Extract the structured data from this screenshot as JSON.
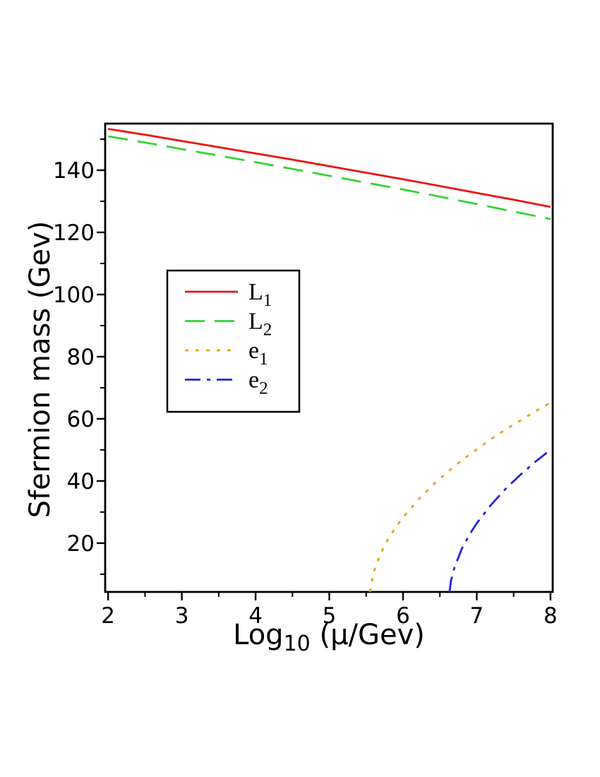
{
  "chart_data": {
    "type": "line",
    "title": "",
    "xlabel": {
      "prefix": "Log",
      "sub": "10",
      "suffix": " (μ/Gev)"
    },
    "ylabel": "Sfermion mass (Gev)",
    "xlim": [
      1.96,
      8.03
    ],
    "ylim": [
      4.3,
      155.0
    ],
    "x_major_ticks": [
      2,
      3,
      4,
      5,
      6,
      7,
      8
    ],
    "x_minor_ticks": [
      2.5,
      3.5,
      4.5,
      5.5,
      6.5,
      7.5
    ],
    "y_major_ticks": [
      20,
      40,
      60,
      80,
      100,
      120,
      140
    ],
    "y_minor_ticks": [
      10,
      30,
      50,
      70,
      90,
      110,
      130,
      150
    ],
    "grid": false,
    "frame_color": "#000000",
    "background": "#ffffff",
    "legend_position": "center-left",
    "series": [
      {
        "name": "L1",
        "label": "L",
        "label_sub": "1",
        "color": "#ee1111",
        "style": "solid",
        "dash": null,
        "points": [
          [
            2,
            153.3
          ],
          [
            2.5,
            151.4
          ],
          [
            3,
            149.4
          ],
          [
            3.5,
            147.4
          ],
          [
            4,
            145.4
          ],
          [
            4.5,
            143.4
          ],
          [
            5,
            141.3
          ],
          [
            5.5,
            139.2
          ],
          [
            6,
            137.1
          ],
          [
            6.5,
            134.9
          ],
          [
            7,
            132.7
          ],
          [
            7.5,
            130.5
          ],
          [
            8,
            128.2
          ]
        ]
      },
      {
        "name": "L2",
        "label": "L",
        "label_sub": "2",
        "color": "#33d433",
        "style": "long-dash",
        "dash": [
          28,
          14
        ],
        "points": [
          [
            2,
            150.9
          ],
          [
            2.5,
            148.9
          ],
          [
            3,
            146.8
          ],
          [
            3.5,
            144.7
          ],
          [
            4,
            142.6
          ],
          [
            4.5,
            140.4
          ],
          [
            5,
            138.2
          ],
          [
            5.5,
            136.0
          ],
          [
            6,
            133.8
          ],
          [
            6.5,
            131.5
          ],
          [
            7,
            129.1
          ],
          [
            7.5,
            126.7
          ],
          [
            8,
            124.3
          ]
        ]
      },
      {
        "name": "e1",
        "label": "e",
        "label_sub": "1",
        "color": "#e5a41c",
        "style": "dotted",
        "dash": [
          5,
          10
        ],
        "points": [
          [
            5.55,
            4.3
          ],
          [
            5.6,
            10.6
          ],
          [
            5.7,
            16.9
          ],
          [
            5.8,
            21.4
          ],
          [
            5.9,
            25.1
          ],
          [
            6.0,
            28.3
          ],
          [
            6.2,
            33.8
          ],
          [
            6.4,
            38.6
          ],
          [
            6.6,
            42.8
          ],
          [
            6.8,
            46.7
          ],
          [
            7.0,
            50.2
          ],
          [
            7.2,
            53.6
          ],
          [
            7.4,
            56.7
          ],
          [
            7.6,
            59.6
          ],
          [
            7.8,
            62.5
          ],
          [
            8.0,
            65.2
          ]
        ]
      },
      {
        "name": "e2",
        "label": "e",
        "label_sub": "2",
        "color": "#2424dd",
        "style": "dash-dot",
        "dash": [
          22,
          9,
          5,
          9
        ],
        "points": [
          [
            6.63,
            4.3
          ],
          [
            6.65,
            7.9
          ],
          [
            6.7,
            12.4
          ],
          [
            6.8,
            18.3
          ],
          [
            6.9,
            22.7
          ],
          [
            7.0,
            26.4
          ],
          [
            7.2,
            32.5
          ],
          [
            7.4,
            37.7
          ],
          [
            7.6,
            42.2
          ],
          [
            7.8,
            46.3
          ],
          [
            8.0,
            50.0
          ]
        ]
      }
    ]
  }
}
